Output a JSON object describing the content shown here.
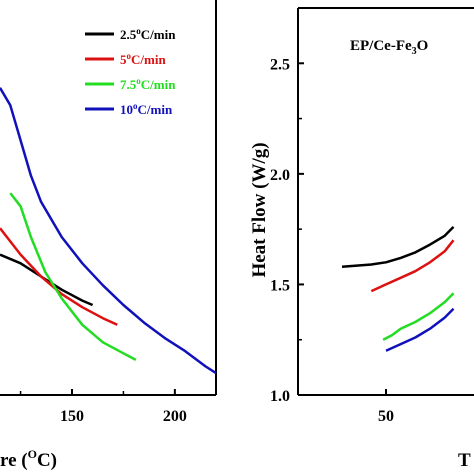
{
  "chart_data": [
    {
      "type": "line",
      "panel": "left",
      "x_axis": {
        "ticks": [
          "150",
          "200"
        ],
        "tick_values": [
          150,
          200
        ],
        "range": [
          115,
          220
        ]
      },
      "xlabel_fragment": "re (",
      "xlabel_sup": "O",
      "xlabel_tail": "C)",
      "legend_position": "top-right",
      "series": [
        {
          "name": "2.5",
          "unit": "C/min",
          "sup": "o",
          "color": "#000000",
          "x": [
            115,
            125,
            135,
            145,
            155,
            160
          ],
          "y": [
            0.72,
            0.7,
            0.67,
            0.64,
            0.615,
            0.605
          ]
        },
        {
          "name": "5",
          "unit": "C/min",
          "sup": "o",
          "color": "#dd1111",
          "x": [
            115,
            125,
            135,
            145,
            155,
            165,
            172
          ],
          "y": [
            0.78,
            0.72,
            0.67,
            0.63,
            0.6,
            0.575,
            0.56
          ]
        },
        {
          "name": "7.5",
          "unit": "C/min",
          "sup": "o",
          "color": "#22dd22",
          "x": [
            120,
            125,
            130,
            137,
            145,
            155,
            165,
            175,
            181
          ],
          "y": [
            0.86,
            0.83,
            0.76,
            0.68,
            0.62,
            0.56,
            0.52,
            0.495,
            0.48
          ]
        },
        {
          "name": "10",
          "unit": "C/min",
          "sup": "o",
          "color": "#1111bb",
          "x": [
            115,
            120,
            125,
            130,
            135,
            145,
            155,
            165,
            175,
            185,
            195,
            205,
            215,
            220
          ],
          "y": [
            1.1,
            1.06,
            0.98,
            0.9,
            0.84,
            0.76,
            0.7,
            0.65,
            0.605,
            0.565,
            0.53,
            0.5,
            0.465,
            0.45
          ]
        }
      ]
    },
    {
      "type": "line",
      "panel": "right",
      "title": "EP/Ce-Fe",
      "title_sub": "3",
      "title_tail": "O",
      "ylabel": "Heat Flow (W/g)",
      "xlabel_fragment": "T",
      "x_axis": {
        "ticks": [
          "50"
        ],
        "tick_values": [
          50
        ],
        "range": [
          20,
          80
        ]
      },
      "y_axis": {
        "ticks": [
          "1.0",
          "1.5",
          "2.0",
          "2.5"
        ],
        "tick_values": [
          1.0,
          1.5,
          2.0,
          2.5
        ],
        "range": [
          1.0,
          2.75
        ]
      },
      "series": [
        {
          "color": "#000000",
          "x": [
            35,
            40,
            45,
            50,
            55,
            60,
            65,
            70,
            73
          ],
          "y": [
            1.58,
            1.585,
            1.59,
            1.6,
            1.62,
            1.645,
            1.68,
            1.72,
            1.76
          ]
        },
        {
          "color": "#dd1111",
          "x": [
            45,
            50,
            55,
            60,
            65,
            70,
            73
          ],
          "y": [
            1.47,
            1.5,
            1.53,
            1.56,
            1.6,
            1.65,
            1.7
          ]
        },
        {
          "color": "#22dd22",
          "x": [
            49,
            52,
            55,
            60,
            65,
            70,
            73
          ],
          "y": [
            1.25,
            1.27,
            1.3,
            1.33,
            1.37,
            1.42,
            1.46
          ]
        },
        {
          "color": "#1111bb",
          "x": [
            50,
            55,
            60,
            65,
            70,
            73
          ],
          "y": [
            1.2,
            1.23,
            1.26,
            1.3,
            1.35,
            1.39
          ]
        }
      ]
    }
  ]
}
